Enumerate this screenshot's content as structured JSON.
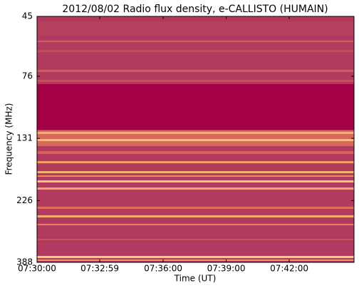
{
  "chart_data": {
    "type": "spectrogram",
    "title": "2012/08/02  Radio flux density, e-CALLISTO (HUMAIN)",
    "xlabel": "Time (UT)",
    "ylabel": "Frequency (MHz)",
    "xlim": [
      "07:30:00",
      "07:45:05"
    ],
    "xticks": [
      "07:30:00",
      "07:32:59",
      "07:36:00",
      "07:39:00",
      "07:42:00"
    ],
    "ylim": [
      45,
      388
    ],
    "yscale": "log",
    "yinverted": true,
    "yticks": [
      45,
      76,
      131,
      226,
      388
    ]
  }
}
